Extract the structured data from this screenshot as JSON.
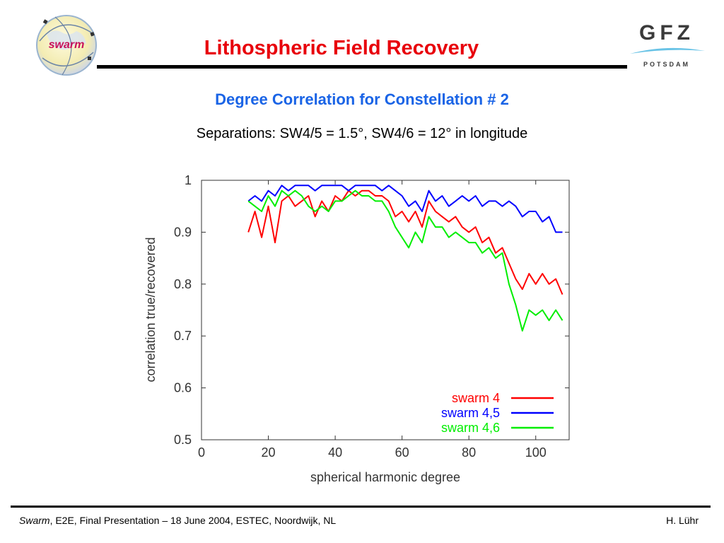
{
  "header": {
    "title": "Lithospheric Field Recovery",
    "swarm_logo_text": "swarm",
    "gfz_logo_text": "GFZ",
    "gfz_logo_subtext": "POTSDAM"
  },
  "subtitle": "Degree Correlation for Constellation # 2",
  "subtitle2": "Separations: SW4/5 = 1.5°, SW4/6 = 12° in longitude",
  "footer": {
    "left_italic": "Swarm",
    "left_rest": ", E2E, Final Presentation – 18 June 2004, ESTEC, Noordwijk, NL",
    "right": "H. Lühr"
  },
  "colors": {
    "title": "#e8000b",
    "subtitle": "#1a64e6",
    "swarm4": "#ff0000",
    "swarm45": "#0000ff",
    "swarm46": "#00ee00"
  },
  "chart_data": {
    "type": "line",
    "xlabel": "spherical harmonic degree",
    "ylabel": "correlation true/recovered",
    "xlim": [
      0,
      110
    ],
    "ylim": [
      0.5,
      1.0
    ],
    "xticks": [
      0,
      20,
      40,
      60,
      80,
      100
    ],
    "yticks": [
      0.5,
      0.6,
      0.7,
      0.8,
      0.9,
      1
    ],
    "grid": false,
    "legend_position": "bottom-right",
    "x": [
      14,
      16,
      18,
      20,
      22,
      24,
      26,
      28,
      30,
      32,
      34,
      36,
      38,
      40,
      42,
      44,
      46,
      48,
      50,
      52,
      54,
      56,
      58,
      60,
      62,
      64,
      66,
      68,
      70,
      72,
      74,
      76,
      78,
      80,
      82,
      84,
      86,
      88,
      90,
      92,
      94,
      96,
      98,
      100,
      102,
      104,
      106,
      108
    ],
    "series": [
      {
        "name": "swarm 4",
        "color": "#ff0000",
        "values": [
          0.9,
          0.94,
          0.89,
          0.95,
          0.88,
          0.96,
          0.97,
          0.95,
          0.96,
          0.97,
          0.93,
          0.96,
          0.94,
          0.97,
          0.96,
          0.98,
          0.97,
          0.98,
          0.98,
          0.97,
          0.97,
          0.96,
          0.93,
          0.94,
          0.92,
          0.94,
          0.91,
          0.96,
          0.94,
          0.93,
          0.92,
          0.93,
          0.91,
          0.9,
          0.91,
          0.88,
          0.89,
          0.86,
          0.87,
          0.84,
          0.81,
          0.79,
          0.82,
          0.8,
          0.82,
          0.8,
          0.81,
          0.78
        ]
      },
      {
        "name": "swarm 4,5",
        "color": "#0000ff",
        "values": [
          0.96,
          0.97,
          0.96,
          0.98,
          0.97,
          0.99,
          0.98,
          0.99,
          0.99,
          0.99,
          0.98,
          0.99,
          0.99,
          0.99,
          0.99,
          0.98,
          0.99,
          0.99,
          0.99,
          0.99,
          0.98,
          0.99,
          0.98,
          0.97,
          0.95,
          0.96,
          0.94,
          0.98,
          0.96,
          0.97,
          0.95,
          0.96,
          0.97,
          0.96,
          0.97,
          0.95,
          0.96,
          0.96,
          0.95,
          0.96,
          0.95,
          0.93,
          0.94,
          0.94,
          0.92,
          0.93,
          0.9,
          0.9
        ]
      },
      {
        "name": "swarm 4,6",
        "color": "#00ee00",
        "values": [
          0.96,
          0.95,
          0.94,
          0.97,
          0.95,
          0.98,
          0.97,
          0.98,
          0.97,
          0.95,
          0.94,
          0.95,
          0.94,
          0.96,
          0.96,
          0.97,
          0.98,
          0.97,
          0.97,
          0.96,
          0.96,
          0.94,
          0.91,
          0.89,
          0.87,
          0.9,
          0.88,
          0.93,
          0.91,
          0.91,
          0.89,
          0.9,
          0.89,
          0.88,
          0.88,
          0.86,
          0.87,
          0.85,
          0.86,
          0.8,
          0.76,
          0.71,
          0.75,
          0.74,
          0.75,
          0.73,
          0.75,
          0.73
        ]
      }
    ]
  }
}
